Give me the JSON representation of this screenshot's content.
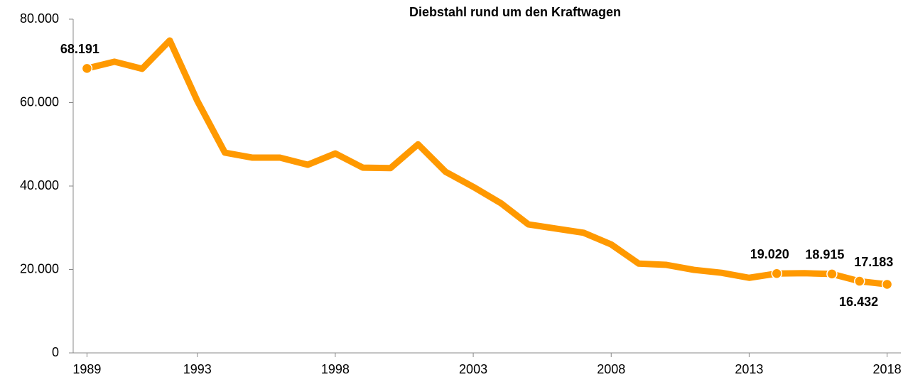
{
  "chart_data": {
    "type": "line",
    "title": "Diebstahl rund um den Kraftwagen",
    "x": [
      1989,
      1990,
      1991,
      1992,
      1993,
      1994,
      1995,
      1996,
      1997,
      1998,
      1999,
      2000,
      2001,
      2002,
      2003,
      2004,
      2005,
      2006,
      2007,
      2008,
      2009,
      2010,
      2011,
      2012,
      2013,
      2014,
      2015,
      2016,
      2017,
      2018
    ],
    "series": [
      {
        "color": "#ff9900",
        "values": [
          68191,
          69800,
          68100,
          74900,
          60400,
          48000,
          46800,
          46800,
          45100,
          47800,
          44400,
          44300,
          50000,
          43400,
          39800,
          35900,
          30800,
          29800,
          28800,
          26000,
          21400,
          21100,
          19900,
          19200,
          18000,
          19020,
          19100,
          18915,
          17183,
          16432
        ],
        "value_labels": [
          "68.191",
          null,
          null,
          null,
          null,
          null,
          null,
          null,
          null,
          null,
          null,
          null,
          null,
          null,
          null,
          null,
          null,
          null,
          null,
          null,
          null,
          null,
          null,
          null,
          null,
          "19.020",
          null,
          "18.915",
          "17.183",
          "16.432"
        ]
      }
    ],
    "xlim": [
      1988.5,
      2018.5
    ],
    "xticks": [
      1989,
      1993,
      1998,
      2003,
      2008,
      2013,
      2018
    ],
    "ylim": [
      0,
      80000
    ],
    "yticks": [
      0,
      {
        "value": 20000,
        "label": "20.000"
      },
      {
        "value": 40000,
        "label": "40.000"
      },
      {
        "value": 60000,
        "label": "60.000"
      },
      {
        "value": 80000,
        "label": "80.000"
      }
    ]
  }
}
